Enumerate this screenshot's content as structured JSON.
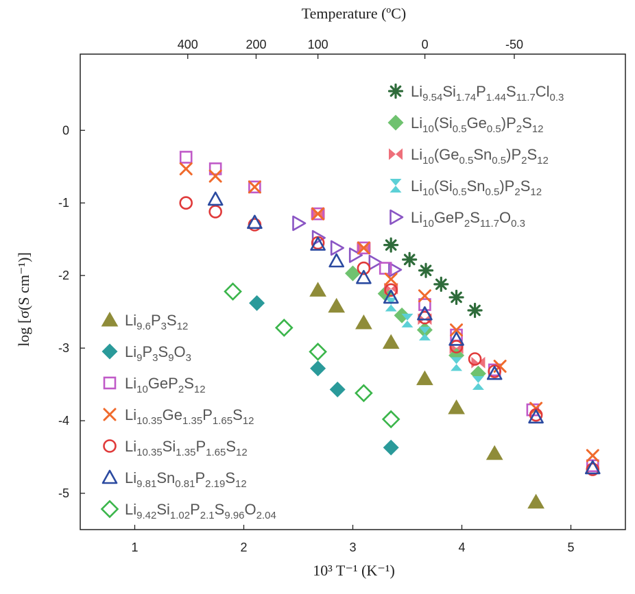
{
  "chart_data": {
    "type": "scatter",
    "title": "",
    "xlabel": "10³ T⁻¹ (K⁻¹)",
    "ylabel": "log [σ(S cm⁻¹)]",
    "top_xlabel": "Temperature (ºC)",
    "xlim": [
      0.5,
      5.5
    ],
    "ylim": [
      -5.5,
      1.05
    ],
    "xticks": [
      1,
      2,
      3,
      4,
      5
    ],
    "yticks": [
      0,
      -1,
      -2,
      -3,
      -4,
      -5
    ],
    "top_ticks": [
      {
        "label": "400",
        "x": 1.486
      },
      {
        "label": "200",
        "x": 2.113
      },
      {
        "label": "100",
        "x": 2.68
      },
      {
        "label": "0",
        "x": 3.661
      },
      {
        "label": "-50",
        "x": 4.481
      }
    ],
    "grid": false,
    "series": [
      {
        "name": "Li9.54Si1.74P1.44S11.7Cl0.3",
        "marker": "asterisk",
        "color": "#2e6b3a",
        "x": [
          3.35,
          3.52,
          3.67,
          3.81,
          3.95,
          4.12
        ],
        "y": [
          -1.58,
          -1.78,
          -1.93,
          -2.12,
          -2.3,
          -2.48
        ]
      },
      {
        "name": "Li10(Si0.5Ge0.5)P2S12",
        "marker": "diamond-filled",
        "color": "#6fc26f",
        "x": [
          3.0,
          3.3,
          3.45,
          3.66,
          3.95,
          4.15
        ],
        "y": [
          -1.97,
          -2.25,
          -2.55,
          -2.75,
          -3.1,
          -3.35
        ]
      },
      {
        "name": "Li10(Ge0.5Sn0.5)P2S12",
        "marker": "bowtie",
        "color": "#ee6f7a",
        "x": [
          2.68,
          3.1,
          3.35,
          3.66,
          3.95,
          4.15
        ],
        "y": [
          -1.15,
          -1.62,
          -2.18,
          -2.6,
          -3.0,
          -3.2
        ]
      },
      {
        "name": "Li10(Si0.5Sn0.5)P2S12",
        "marker": "hourglass",
        "color": "#5cd0d6",
        "x": [
          3.35,
          3.5,
          3.66,
          3.95,
          4.15
        ],
        "y": [
          -2.4,
          -2.62,
          -2.8,
          -3.22,
          -3.48
        ]
      },
      {
        "name": "Li10GeP2S11.7O0.3",
        "marker": "triangle-right",
        "color": "#8a55c4",
        "x": [
          2.5,
          2.68,
          2.85,
          3.02,
          3.2,
          3.38
        ],
        "y": [
          -1.28,
          -1.48,
          -1.62,
          -1.72,
          -1.82,
          -1.92
        ]
      },
      {
        "name": "Li9.6P3S12",
        "marker": "triangle-filled",
        "color": "#8f8c39",
        "x": [
          2.68,
          2.85,
          3.1,
          3.35,
          3.66,
          3.95,
          4.3,
          4.68
        ],
        "y": [
          -2.2,
          -2.42,
          -2.65,
          -2.92,
          -3.42,
          -3.82,
          -4.45,
          -5.12
        ]
      },
      {
        "name": "Li9P3S9O3",
        "marker": "diamond-filled",
        "color": "#2a9a9a",
        "x": [
          2.12,
          2.68,
          2.86,
          3.35
        ],
        "y": [
          -2.38,
          -3.28,
          -3.57,
          -4.37
        ]
      },
      {
        "name": "Li10GeP2S12",
        "marker": "square-open",
        "color": "#c05ac8",
        "x": [
          1.47,
          1.74,
          2.1,
          2.68,
          3.1,
          3.3,
          3.66,
          3.95,
          4.3,
          4.65,
          5.2
        ],
        "y": [
          -0.37,
          -0.53,
          -0.78,
          -1.15,
          -1.62,
          -1.9,
          -2.4,
          -2.82,
          -3.3,
          -3.85,
          -4.62
        ]
      },
      {
        "name": "Li10.35Ge1.35P1.65S12",
        "marker": "x",
        "color": "#f06a2c",
        "x": [
          1.47,
          1.74,
          2.1,
          2.68,
          3.1,
          3.35,
          3.66,
          3.95,
          4.35,
          4.68,
          5.2
        ],
        "y": [
          -0.53,
          -0.63,
          -0.78,
          -1.15,
          -1.62,
          -2.05,
          -2.28,
          -2.75,
          -3.25,
          -3.83,
          -4.48
        ]
      },
      {
        "name": "Li10.35Si1.35P1.65S12",
        "marker": "circle-open",
        "color": "#e03a3a",
        "x": [
          1.47,
          1.74,
          2.1,
          2.68,
          3.1,
          3.35,
          3.66,
          3.95,
          4.12,
          4.3,
          4.68,
          5.2
        ],
        "y": [
          -1.0,
          -1.12,
          -1.3,
          -1.55,
          -1.9,
          -2.2,
          -2.58,
          -2.98,
          -3.15,
          -3.32,
          -3.92,
          -4.67
        ]
      },
      {
        "name": "Li9.81Sn0.81P2.19S12",
        "marker": "triangle-open",
        "color": "#2b4aa0",
        "x": [
          1.74,
          2.1,
          2.68,
          2.85,
          3.1,
          3.35,
          3.66,
          3.95,
          4.3,
          4.68,
          5.2
        ],
        "y": [
          -0.95,
          -1.27,
          -1.57,
          -1.8,
          -2.03,
          -2.3,
          -2.53,
          -2.88,
          -3.35,
          -3.95,
          -4.65
        ]
      },
      {
        "name": "Li9.42Si1.02P2.1S9.96O2.04",
        "marker": "diamond-open",
        "color": "#3ab54a",
        "x": [
          1.9,
          2.37,
          2.68,
          3.1,
          3.35
        ],
        "y": [
          -2.22,
          -2.72,
          -3.05,
          -3.62,
          -3.98
        ]
      }
    ]
  },
  "legend_top": [
    {
      "marker": "asterisk",
      "color": "#2e6b3a",
      "parts": [
        [
          "Li",
          ""
        ],
        [
          "9.54",
          "sub"
        ],
        [
          "Si",
          ""
        ],
        [
          "1.74",
          "sub"
        ],
        [
          "P",
          ""
        ],
        [
          "1.44",
          "sub"
        ],
        [
          "S",
          ""
        ],
        [
          "11.7",
          "sub"
        ],
        [
          "Cl",
          ""
        ],
        [
          "0.3",
          "sub"
        ]
      ]
    },
    {
      "marker": "diamond-filled",
      "color": "#6fc26f",
      "parts": [
        [
          "Li",
          ""
        ],
        [
          "10",
          "sub"
        ],
        [
          "(Si",
          ""
        ],
        [
          "0.5",
          "sub"
        ],
        [
          "Ge",
          ""
        ],
        [
          "0.5",
          "sub"
        ],
        [
          ")P",
          ""
        ],
        [
          "2",
          "sub"
        ],
        [
          "S",
          ""
        ],
        [
          "12",
          "sub"
        ]
      ]
    },
    {
      "marker": "bowtie",
      "color": "#ee6f7a",
      "parts": [
        [
          "Li",
          ""
        ],
        [
          "10",
          "sub"
        ],
        [
          "(Ge",
          ""
        ],
        [
          "0.5",
          "sub"
        ],
        [
          "Sn",
          ""
        ],
        [
          "0.5",
          "sub"
        ],
        [
          ")P",
          ""
        ],
        [
          "2",
          "sub"
        ],
        [
          "S",
          ""
        ],
        [
          "12",
          "sub"
        ]
      ]
    },
    {
      "marker": "hourglass",
      "color": "#5cd0d6",
      "parts": [
        [
          "Li",
          ""
        ],
        [
          "10",
          "sub"
        ],
        [
          "(Si",
          ""
        ],
        [
          "0.5",
          "sub"
        ],
        [
          "Sn",
          ""
        ],
        [
          "0.5",
          "sub"
        ],
        [
          ")P",
          ""
        ],
        [
          "2",
          "sub"
        ],
        [
          "S",
          ""
        ],
        [
          "12",
          "sub"
        ]
      ]
    },
    {
      "marker": "triangle-right",
      "color": "#8a55c4",
      "parts": [
        [
          "Li",
          ""
        ],
        [
          "10",
          "sub"
        ],
        [
          "GeP",
          ""
        ],
        [
          "2",
          "sub"
        ],
        [
          "S",
          ""
        ],
        [
          "11.7",
          "sub"
        ],
        [
          "O",
          ""
        ],
        [
          "0.3",
          "sub"
        ]
      ]
    }
  ],
  "legend_bottom": [
    {
      "marker": "triangle-filled",
      "color": "#8f8c39",
      "parts": [
        [
          "Li",
          ""
        ],
        [
          "9.6",
          "sub"
        ],
        [
          "P",
          ""
        ],
        [
          "3",
          "sub"
        ],
        [
          "S",
          ""
        ],
        [
          "12",
          "sub"
        ]
      ]
    },
    {
      "marker": "diamond-filled",
      "color": "#2a9a9a",
      "parts": [
        [
          "Li",
          ""
        ],
        [
          "9",
          "sub"
        ],
        [
          "P",
          ""
        ],
        [
          "3",
          "sub"
        ],
        [
          "S",
          ""
        ],
        [
          "9",
          "sub"
        ],
        [
          "O",
          ""
        ],
        [
          "3",
          "sub"
        ]
      ]
    },
    {
      "marker": "square-open",
      "color": "#c05ac8",
      "parts": [
        [
          "Li",
          ""
        ],
        [
          "10",
          "sub"
        ],
        [
          "GeP",
          ""
        ],
        [
          "2",
          "sub"
        ],
        [
          "S",
          ""
        ],
        [
          "12",
          "sub"
        ]
      ]
    },
    {
      "marker": "x",
      "color": "#f06a2c",
      "parts": [
        [
          "Li",
          ""
        ],
        [
          "10.35",
          "sub"
        ],
        [
          "Ge",
          ""
        ],
        [
          "1.35",
          "sub"
        ],
        [
          "P",
          ""
        ],
        [
          "1.65",
          "sub"
        ],
        [
          "S",
          ""
        ],
        [
          "12",
          "sub"
        ]
      ]
    },
    {
      "marker": "circle-open",
      "color": "#e03a3a",
      "parts": [
        [
          "Li",
          ""
        ],
        [
          "10.35",
          "sub"
        ],
        [
          "Si",
          ""
        ],
        [
          "1.35",
          "sub"
        ],
        [
          "P",
          ""
        ],
        [
          "1.65",
          "sub"
        ],
        [
          "S",
          ""
        ],
        [
          "12",
          "sub"
        ]
      ]
    },
    {
      "marker": "triangle-open",
      "color": "#2b4aa0",
      "parts": [
        [
          "Li",
          ""
        ],
        [
          "9.81",
          "sub"
        ],
        [
          "Sn",
          ""
        ],
        [
          "0.81",
          "sub"
        ],
        [
          "P",
          ""
        ],
        [
          "2.19",
          "sub"
        ],
        [
          "S",
          ""
        ],
        [
          "12",
          "sub"
        ]
      ]
    },
    {
      "marker": "diamond-open",
      "color": "#3ab54a",
      "parts": [
        [
          "Li",
          ""
        ],
        [
          "9.42",
          "sub"
        ],
        [
          "Si",
          ""
        ],
        [
          "1.02",
          "sub"
        ],
        [
          "P",
          ""
        ],
        [
          "2.1",
          "sub"
        ],
        [
          "S",
          ""
        ],
        [
          "9.96",
          "sub"
        ],
        [
          "O",
          ""
        ],
        [
          "2.04",
          "sub"
        ]
      ]
    }
  ]
}
